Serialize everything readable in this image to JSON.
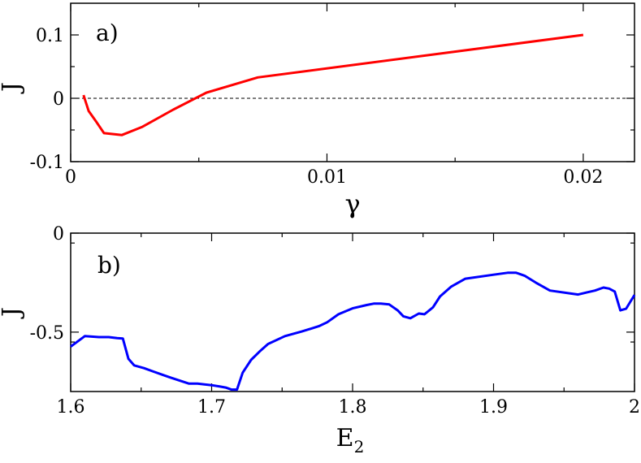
{
  "chart_data": [
    {
      "type": "line",
      "panel_label": "a)",
      "xlabel": "γ",
      "ylabel": "J",
      "xlim": [
        0,
        0.022
      ],
      "ylim": [
        -0.1,
        0.15
      ],
      "x_ticks": [
        0,
        0.01,
        0.02
      ],
      "x_tick_labels": [
        "0",
        "0.01",
        "0.02"
      ],
      "y_ticks": [
        -0.1,
        0,
        0.1
      ],
      "y_tick_labels": [
        "-0.1",
        "0",
        "0.1"
      ],
      "reference_line": {
        "y": 0,
        "style": "dashed"
      },
      "series": [
        {
          "color": "#ff0000",
          "x": [
            0.0005,
            0.0007,
            0.001,
            0.0013,
            0.002,
            0.0028,
            0.004,
            0.0053,
            0.0073,
            0.02
          ],
          "y": [
            0.005,
            -0.02,
            -0.037,
            -0.055,
            -0.058,
            -0.045,
            -0.018,
            0.009,
            0.033,
            0.1
          ]
        }
      ]
    },
    {
      "type": "line",
      "panel_label": "b)",
      "xlabel": "E",
      "xlabel_sub": "2",
      "ylabel": "J",
      "xlim": [
        1.6,
        2.0
      ],
      "ylim": [
        -0.8,
        0.0
      ],
      "x_ticks": [
        1.6,
        1.7,
        1.8,
        1.9,
        2.0
      ],
      "x_tick_labels": [
        "1.6",
        "1.7",
        "1.8",
        "1.9",
        "2"
      ],
      "y_ticks": [
        0,
        -0.5
      ],
      "y_tick_labels": [
        "0",
        "-0.5"
      ],
      "series": [
        {
          "color": "#0000ff",
          "x": [
            1.6,
            1.61,
            1.62,
            1.627,
            1.633,
            1.637,
            1.641,
            1.645,
            1.652,
            1.659,
            1.665,
            1.671,
            1.684,
            1.69,
            1.7,
            1.706,
            1.71,
            1.714,
            1.718,
            1.722,
            1.728,
            1.734,
            1.74,
            1.752,
            1.764,
            1.776,
            1.782,
            1.79,
            1.8,
            1.81,
            1.815,
            1.82,
            1.826,
            1.832,
            1.836,
            1.841,
            1.847,
            1.851,
            1.857,
            1.862,
            1.87,
            1.88,
            1.9,
            1.91,
            1.916,
            1.922,
            1.93,
            1.94,
            1.96,
            1.966,
            1.972,
            1.978,
            1.982,
            1.986,
            1.99,
            1.994,
            2.0
          ],
          "y": [
            -0.573,
            -0.52,
            -0.525,
            -0.525,
            -0.53,
            -0.532,
            -0.635,
            -0.668,
            -0.682,
            -0.7,
            -0.715,
            -0.73,
            -0.76,
            -0.76,
            -0.768,
            -0.775,
            -0.78,
            -0.79,
            -0.79,
            -0.705,
            -0.64,
            -0.598,
            -0.56,
            -0.52,
            -0.497,
            -0.47,
            -0.45,
            -0.41,
            -0.38,
            -0.363,
            -0.356,
            -0.356,
            -0.36,
            -0.39,
            -0.42,
            -0.43,
            -0.406,
            -0.41,
            -0.375,
            -0.32,
            -0.27,
            -0.23,
            -0.21,
            -0.2,
            -0.2,
            -0.215,
            -0.25,
            -0.29,
            -0.31,
            -0.3,
            -0.29,
            -0.275,
            -0.28,
            -0.295,
            -0.39,
            -0.382,
            -0.312
          ]
        }
      ]
    }
  ]
}
